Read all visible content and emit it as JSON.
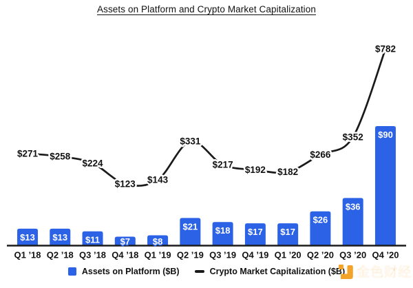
{
  "title": "Assets on Platform and Crypto Market Capitalization",
  "chart_data": {
    "type": "bar+line",
    "title": "Assets on Platform and Crypto Market Capitalization",
    "categories": [
      "Q1 ’18",
      "Q2 ’18",
      "Q3 ’18",
      "Q4 ’18",
      "Q1 ’19",
      "Q2 ’19",
      "Q3 ’19",
      "Q4 ’19",
      "Q1 ’20",
      "Q2 ’20",
      "Q3 ’20",
      "Q4 ’20"
    ],
    "series": [
      {
        "name": "Assets on Platform ($B)",
        "type": "bar",
        "color": "#2b62e6",
        "values": [
          13,
          13,
          11,
          7,
          8,
          21,
          18,
          17,
          17,
          26,
          36,
          90
        ],
        "labels": [
          "$13",
          "$13",
          "$11",
          "$7",
          "$8",
          "$21",
          "$18",
          "$17",
          "$17",
          "$26",
          "$36",
          "$90"
        ]
      },
      {
        "name": "Crypto Market Capitalization ($B)",
        "type": "line",
        "color": "#1a1a1a",
        "values": [
          271,
          258,
          224,
          123,
          143,
          331,
          217,
          192,
          182,
          266,
          352,
          782
        ],
        "labels": [
          "$271",
          "$258",
          "$224",
          "$123",
          "$143",
          "$331",
          "$217",
          "$192",
          "$182",
          "$266",
          "$352",
          "$782"
        ]
      }
    ],
    "xlabel": "",
    "ylabel": "",
    "y_axis_shown": false,
    "gridlines": false,
    "value_labels_shown": true,
    "legend_position": "bottom"
  },
  "legend": {
    "items": [
      {
        "label": "Assets on Platform ($B)",
        "marker": "square",
        "color": "#2b62e6"
      },
      {
        "label": "Crypto Market Capitalization ($B)",
        "marker": "dash",
        "color": "#1a1a1a"
      }
    ]
  },
  "watermark": {
    "text": "金色财经",
    "logo_color": "#f4a32a"
  }
}
